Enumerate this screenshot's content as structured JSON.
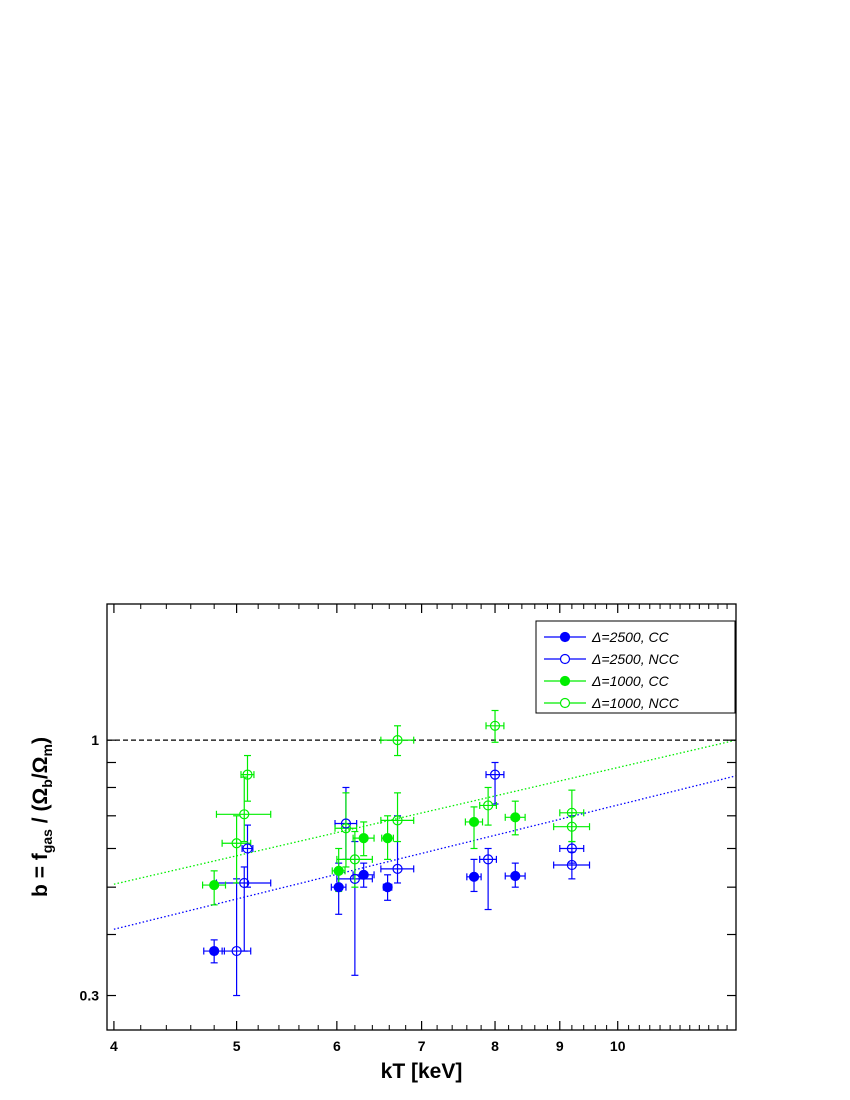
{
  "chart_data": {
    "type": "scatter",
    "title": "",
    "xlabel": "kT [keV]",
    "ylabel": "b = f_gas / (Ω_b / Ω_m)",
    "ylabel_parts": {
      "main": "b = f",
      "main_sub": "gas",
      "div": " / (Ω",
      "b_sub": "b",
      "slash": "/Ω",
      "m_sub": "m",
      "close": ")"
    },
    "x_scale": "log",
    "y_scale": "log",
    "xlim": [
      3.95,
      12.4
    ],
    "ylim": [
      0.255,
      1.9
    ],
    "x_tick_labels": [
      "4",
      "5",
      "6",
      "7",
      "8",
      "9",
      "10"
    ],
    "x_ticks": [
      4,
      5,
      6,
      7,
      8,
      9,
      10
    ],
    "y_tick_labels": [
      "0.3",
      "1"
    ],
    "y_ticks": [
      0.3,
      1
    ],
    "grid": false,
    "legend_position": "top-right",
    "reference_line": {
      "y": 1,
      "style": "dashed",
      "color": "#000000"
    },
    "series": [
      {
        "name": "Δ=2500, CC",
        "color": "#0000ff",
        "filled": true,
        "points": [
          {
            "x": 4.8,
            "y": 0.37,
            "xerr": 0.09,
            "ylo": 0.35,
            "yhi": 0.39
          },
          {
            "x": 6.02,
            "y": 0.5,
            "xerr": 0.08,
            "ylo": 0.44,
            "yhi": 0.56
          },
          {
            "x": 6.3,
            "y": 0.53,
            "xerr": 0.12,
            "ylo": 0.5,
            "yhi": 0.56
          },
          {
            "x": 6.58,
            "y": 0.5,
            "xerr": 0.05,
            "ylo": 0.47,
            "yhi": 0.53
          },
          {
            "x": 7.7,
            "y": 0.525,
            "xerr": 0.1,
            "ylo": 0.49,
            "yhi": 0.57
          },
          {
            "x": 8.3,
            "y": 0.527,
            "xerr": 0.15,
            "ylo": 0.5,
            "yhi": 0.56
          }
        ]
      },
      {
        "name": "Δ=2500, NCC",
        "color": "#0000ff",
        "filled": false,
        "points": [
          {
            "x": 5.0,
            "y": 0.37,
            "xerr": 0.13,
            "ylo": 0.3,
            "yhi": 0.52
          },
          {
            "x": 5.07,
            "y": 0.51,
            "xerr": 0.25,
            "ylo": 0.37,
            "yhi": 0.55
          },
          {
            "x": 5.1,
            "y": 0.6,
            "xerr": 0.05,
            "ylo": 0.5,
            "yhi": 0.67
          },
          {
            "x": 6.1,
            "y": 0.675,
            "xerr": 0.12,
            "ylo": 0.57,
            "yhi": 0.8
          },
          {
            "x": 6.2,
            "y": 0.52,
            "xerr": 0.2,
            "ylo": 0.33,
            "yhi": 0.62
          },
          {
            "x": 6.7,
            "y": 0.545,
            "xerr": 0.2,
            "ylo": 0.51,
            "yhi": 0.7
          },
          {
            "x": 7.9,
            "y": 0.57,
            "xerr": 0.12,
            "ylo": 0.45,
            "yhi": 0.6
          },
          {
            "x": 8.0,
            "y": 0.85,
            "xerr": 0.13,
            "ylo": 0.74,
            "yhi": 0.9
          },
          {
            "x": 9.2,
            "y": 0.555,
            "xerr": 0.3,
            "ylo": 0.52,
            "yhi": 0.59
          },
          {
            "x": 9.2,
            "y": 0.6,
            "xerr": 0.2,
            "ylo": 0.56,
            "yhi": 0.7
          }
        ]
      },
      {
        "name": "Δ=1000, CC",
        "color": "#00ee00",
        "filled": true,
        "points": [
          {
            "x": 4.8,
            "y": 0.505,
            "xerr": 0.1,
            "ylo": 0.46,
            "yhi": 0.54
          },
          {
            "x": 6.02,
            "y": 0.54,
            "xerr": 0.07,
            "ylo": 0.49,
            "yhi": 0.6
          },
          {
            "x": 6.3,
            "y": 0.63,
            "xerr": 0.12,
            "ylo": 0.58,
            "yhi": 0.68
          },
          {
            "x": 6.58,
            "y": 0.63,
            "xerr": 0.07,
            "ylo": 0.57,
            "yhi": 0.7
          },
          {
            "x": 7.7,
            "y": 0.68,
            "xerr": 0.12,
            "ylo": 0.6,
            "yhi": 0.73
          },
          {
            "x": 8.3,
            "y": 0.695,
            "xerr": 0.15,
            "ylo": 0.64,
            "yhi": 0.75
          }
        ]
      },
      {
        "name": "Δ=1000, NCC",
        "color": "#00ee00",
        "filled": false,
        "points": [
          {
            "x": 5.0,
            "y": 0.615,
            "xerr": 0.13,
            "ylo": 0.51,
            "yhi": 0.7
          },
          {
            "x": 5.07,
            "y": 0.705,
            "xerr": 0.25,
            "ylo": 0.62,
            "yhi": 0.84
          },
          {
            "x": 5.1,
            "y": 0.85,
            "xerr": 0.06,
            "ylo": 0.75,
            "yhi": 0.93
          },
          {
            "x": 6.1,
            "y": 0.66,
            "xerr": 0.12,
            "ylo": 0.55,
            "yhi": 0.78
          },
          {
            "x": 6.2,
            "y": 0.57,
            "xerr": 0.2,
            "ylo": 0.5,
            "yhi": 0.65
          },
          {
            "x": 6.7,
            "y": 1.0,
            "xerr": 0.2,
            "ylo": 0.93,
            "yhi": 1.07
          },
          {
            "x": 6.7,
            "y": 0.685,
            "xerr": 0.2,
            "ylo": 0.62,
            "yhi": 0.78
          },
          {
            "x": 7.9,
            "y": 0.735,
            "xerr": 0.12,
            "ylo": 0.67,
            "yhi": 0.8
          },
          {
            "x": 8.0,
            "y": 1.07,
            "xerr": 0.13,
            "ylo": 0.99,
            "yhi": 1.15
          },
          {
            "x": 9.2,
            "y": 0.71,
            "xerr": 0.2,
            "ylo": 0.62,
            "yhi": 0.79
          },
          {
            "x": 9.2,
            "y": 0.665,
            "xerr": 0.3,
            "ylo": 0.62,
            "yhi": 0.71
          }
        ]
      }
    ],
    "fit_lines": [
      {
        "series": "Δ=2500",
        "color": "#0000ff",
        "style": "dotted",
        "x": [
          4.0,
          12.4
        ],
        "y": [
          0.41,
          0.845
        ]
      },
      {
        "series": "Δ=1000",
        "color": "#00ee00",
        "style": "dotted",
        "x": [
          4.0,
          12.4
        ],
        "y": [
          0.507,
          1.0
        ]
      }
    ]
  }
}
